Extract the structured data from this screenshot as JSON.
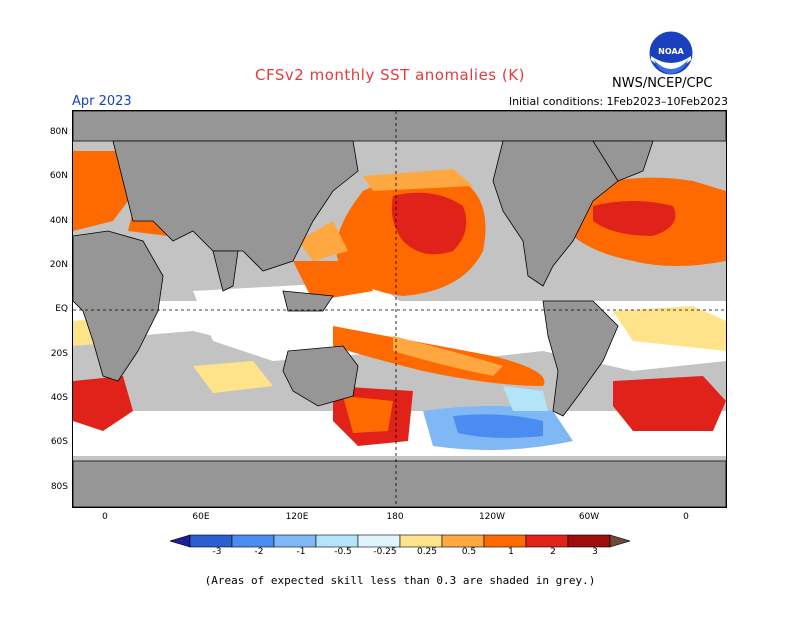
{
  "header": {
    "title": "CFSv2 monthly SST anomalies (K)",
    "month": "Apr 2023",
    "initial_conditions": "Initial conditions: 1Feb2023–10Feb2023",
    "agency": "NWS/NCEP/CPC",
    "logo_text": "NOAA"
  },
  "axes": {
    "lat_labels": [
      "80N",
      "60N",
      "40N",
      "20N",
      "EQ",
      "20S",
      "40S",
      "60S",
      "80S"
    ],
    "lon_labels": [
      "0",
      "60E",
      "120E",
      "180",
      "120W",
      "60W",
      "0"
    ]
  },
  "colorbar": {
    "labels": [
      "-3",
      "-2",
      "-1",
      "-0.5",
      "-0.25",
      "0.25",
      "0.5",
      "1",
      "2",
      "3"
    ],
    "colors": [
      "#1e1e9a",
      "#2b5fd0",
      "#4a8cf0",
      "#7fb8f5",
      "#b4e4f8",
      "#ffffff",
      "#ffe38a",
      "#ffa740",
      "#ff6a00",
      "#e0221a",
      "#9e0e0e",
      "#6b4a3a"
    ]
  },
  "footnote": "(Areas of expected skill less than 0.3 are shaded in grey.)",
  "map_colors": {
    "land": "#969696",
    "skill_grey": "#c3c3c3",
    "ocean_neutral": "#ffffff"
  }
}
